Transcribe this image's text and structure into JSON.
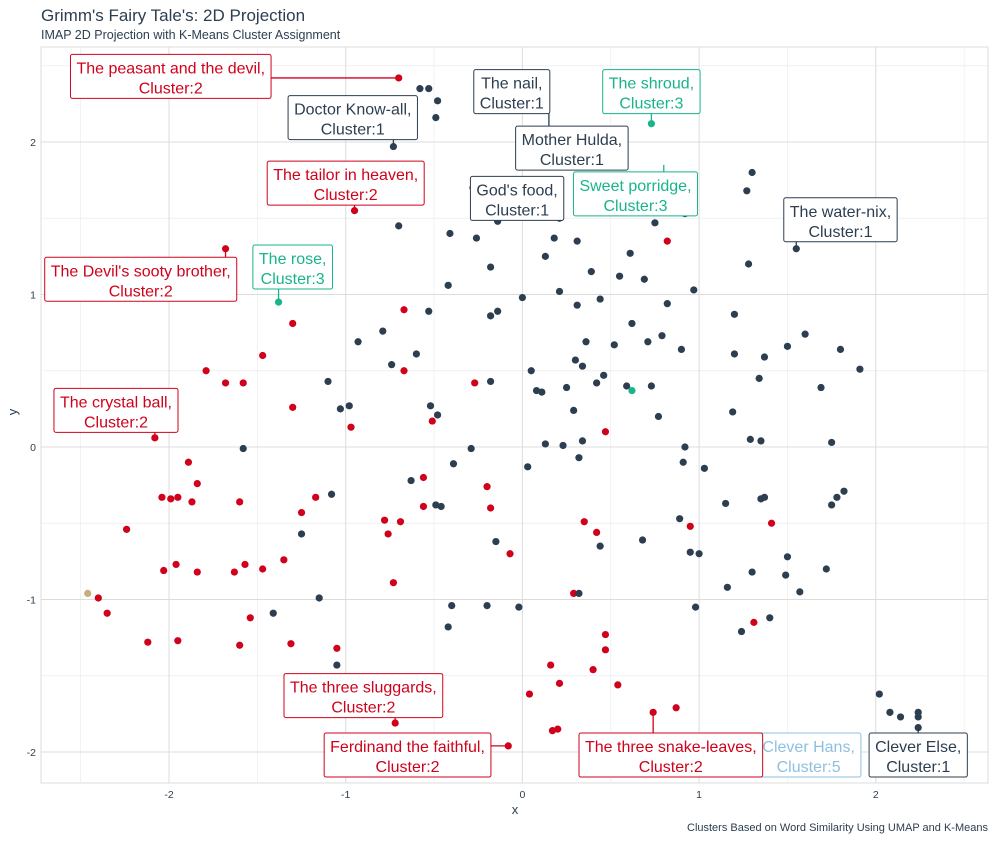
{
  "colors": {
    "cluster1": "#2c3e50",
    "cluster2": "#d0021b",
    "cluster3": "#18b48c",
    "cluster4": "#c8ad7f",
    "cluster5": "#8ec0e0",
    "grid": "#dcdcdc",
    "text": "#2c3e50"
  },
  "chart_data": {
    "type": "scatter",
    "title": "Grimm's Fairy Tale's: 2D Projection",
    "subtitle": "IMAP 2D Projection with K-Means Cluster Assignment",
    "caption": "Clusters Based on Word Similarity Using UMAP and K-Means",
    "xlabel": "x",
    "ylabel": "y",
    "xlim": [
      -2.6,
      2.65
    ],
    "ylim": [
      -2.2,
      2.6
    ],
    "xticks": [
      -2,
      -1,
      0,
      1,
      2
    ],
    "yticks": [
      -2,
      -1,
      0,
      1,
      2
    ],
    "xtick_labels": [
      "-2",
      "-1",
      "0",
      "1",
      "2"
    ],
    "ytick_labels": [
      "-2",
      "-1",
      "0",
      "1",
      "2"
    ],
    "grid": true,
    "legend": "none",
    "points": [
      {
        "x": -0.7,
        "y": 2.42,
        "cluster": 2
      },
      {
        "x": -0.58,
        "y": 2.35,
        "cluster": 1
      },
      {
        "x": -0.53,
        "y": 2.35,
        "cluster": 1
      },
      {
        "x": -0.48,
        "y": 2.27,
        "cluster": 1
      },
      {
        "x": -0.49,
        "y": 2.16,
        "cluster": 1
      },
      {
        "x": -0.73,
        "y": 1.97,
        "cluster": 1
      },
      {
        "x": 0.73,
        "y": 2.12,
        "cluster": 3
      },
      {
        "x": 1.3,
        "y": 1.8,
        "cluster": 1
      },
      {
        "x": 1.27,
        "y": 1.68,
        "cluster": 1
      },
      {
        "x": -0.28,
        "y": 1.7,
        "cluster": 1
      },
      {
        "x": -0.14,
        "y": 1.48,
        "cluster": 1
      },
      {
        "x": -0.95,
        "y": 1.55,
        "cluster": 2
      },
      {
        "x": -0.7,
        "y": 1.45,
        "cluster": 1
      },
      {
        "x": 0.21,
        "y": 1.5,
        "cluster": 1
      },
      {
        "x": 0.92,
        "y": 1.53,
        "cluster": 1
      },
      {
        "x": 0.75,
        "y": 1.47,
        "cluster": 1
      },
      {
        "x": 0.82,
        "y": 1.35,
        "cluster": 2
      },
      {
        "x": 1.55,
        "y": 1.3,
        "cluster": 1
      },
      {
        "x": -1.68,
        "y": 1.3,
        "cluster": 2
      },
      {
        "x": -0.41,
        "y": 1.4,
        "cluster": 1
      },
      {
        "x": -0.26,
        "y": 1.37,
        "cluster": 1
      },
      {
        "x": 0.18,
        "y": 1.37,
        "cluster": 1
      },
      {
        "x": 0.31,
        "y": 1.35,
        "cluster": 1
      },
      {
        "x": 0.13,
        "y": 1.25,
        "cluster": 1
      },
      {
        "x": 0.61,
        "y": 1.27,
        "cluster": 1
      },
      {
        "x": 1.28,
        "y": 1.2,
        "cluster": 1
      },
      {
        "x": -0.18,
        "y": 1.18,
        "cluster": 1
      },
      {
        "x": 0.39,
        "y": 1.15,
        "cluster": 1
      },
      {
        "x": 0.55,
        "y": 1.12,
        "cluster": 1
      },
      {
        "x": 0.69,
        "y": 1.1,
        "cluster": 1
      },
      {
        "x": -0.42,
        "y": 1.06,
        "cluster": 1
      },
      {
        "x": 0.97,
        "y": 1.03,
        "cluster": 1
      },
      {
        "x": 0.21,
        "y": 1.02,
        "cluster": 1
      },
      {
        "x": 0.0,
        "y": 0.98,
        "cluster": 1
      },
      {
        "x": 0.44,
        "y": 0.97,
        "cluster": 1
      },
      {
        "x": 0.82,
        "y": 0.94,
        "cluster": 1
      },
      {
        "x": -1.38,
        "y": 0.95,
        "cluster": 3
      },
      {
        "x": -0.67,
        "y": 0.9,
        "cluster": 2
      },
      {
        "x": -0.53,
        "y": 0.89,
        "cluster": 1
      },
      {
        "x": -0.14,
        "y": 0.89,
        "cluster": 1
      },
      {
        "x": -0.18,
        "y": 0.86,
        "cluster": 1
      },
      {
        "x": 0.31,
        "y": 0.93,
        "cluster": 1
      },
      {
        "x": 1.2,
        "y": 0.87,
        "cluster": 1
      },
      {
        "x": -1.3,
        "y": 0.81,
        "cluster": 2
      },
      {
        "x": 0.62,
        "y": 0.81,
        "cluster": 1
      },
      {
        "x": -0.79,
        "y": 0.76,
        "cluster": 1
      },
      {
        "x": 1.6,
        "y": 0.74,
        "cluster": 1
      },
      {
        "x": 0.79,
        "y": 0.73,
        "cluster": 1
      },
      {
        "x": -0.93,
        "y": 0.69,
        "cluster": 1
      },
      {
        "x": 0.71,
        "y": 0.69,
        "cluster": 1
      },
      {
        "x": 0.36,
        "y": 0.69,
        "cluster": 1
      },
      {
        "x": 0.52,
        "y": 0.67,
        "cluster": 1
      },
      {
        "x": 1.5,
        "y": 0.66,
        "cluster": 1
      },
      {
        "x": 0.9,
        "y": 0.64,
        "cluster": 1
      },
      {
        "x": 1.8,
        "y": 0.64,
        "cluster": 1
      },
      {
        "x": -1.47,
        "y": 0.6,
        "cluster": 2
      },
      {
        "x": -0.6,
        "y": 0.61,
        "cluster": 1
      },
      {
        "x": 1.2,
        "y": 0.61,
        "cluster": 1
      },
      {
        "x": 1.37,
        "y": 0.59,
        "cluster": 1
      },
      {
        "x": 0.3,
        "y": 0.57,
        "cluster": 1
      },
      {
        "x": -0.74,
        "y": 0.54,
        "cluster": 1
      },
      {
        "x": 0.34,
        "y": 0.53,
        "cluster": 1
      },
      {
        "x": 1.91,
        "y": 0.51,
        "cluster": 1
      },
      {
        "x": -1.79,
        "y": 0.5,
        "cluster": 2
      },
      {
        "x": -0.67,
        "y": 0.5,
        "cluster": 2
      },
      {
        "x": 0.05,
        "y": 0.5,
        "cluster": 1
      },
      {
        "x": 0.46,
        "y": 0.47,
        "cluster": 1
      },
      {
        "x": 1.34,
        "y": 0.45,
        "cluster": 1
      },
      {
        "x": -1.68,
        "y": 0.42,
        "cluster": 2
      },
      {
        "x": -1.58,
        "y": 0.42,
        "cluster": 2
      },
      {
        "x": -1.1,
        "y": 0.43,
        "cluster": 1
      },
      {
        "x": -0.27,
        "y": 0.42,
        "cluster": 2
      },
      {
        "x": -0.18,
        "y": 0.43,
        "cluster": 1
      },
      {
        "x": 0.59,
        "y": 0.4,
        "cluster": 1
      },
      {
        "x": 0.25,
        "y": 0.39,
        "cluster": 1
      },
      {
        "x": 0.42,
        "y": 0.42,
        "cluster": 1
      },
      {
        "x": 0.73,
        "y": 0.4,
        "cluster": 1
      },
      {
        "x": 1.69,
        "y": 0.39,
        "cluster": 1
      },
      {
        "x": 0.62,
        "y": 0.37,
        "cluster": 3
      },
      {
        "x": 0.08,
        "y": 0.37,
        "cluster": 1
      },
      {
        "x": 0.11,
        "y": 0.36,
        "cluster": 1
      },
      {
        "x": -0.52,
        "y": 0.27,
        "cluster": 1
      },
      {
        "x": -1.3,
        "y": 0.26,
        "cluster": 2
      },
      {
        "x": -0.98,
        "y": 0.27,
        "cluster": 1
      },
      {
        "x": -1.03,
        "y": 0.25,
        "cluster": 1
      },
      {
        "x": 0.77,
        "y": 0.2,
        "cluster": 1
      },
      {
        "x": 1.19,
        "y": 0.23,
        "cluster": 1
      },
      {
        "x": 0.29,
        "y": 0.24,
        "cluster": 1
      },
      {
        "x": -0.48,
        "y": 0.21,
        "cluster": 1
      },
      {
        "x": -0.51,
        "y": 0.17,
        "cluster": 2
      },
      {
        "x": -0.97,
        "y": 0.13,
        "cluster": 2
      },
      {
        "x": 0.47,
        "y": 0.1,
        "cluster": 2
      },
      {
        "x": -2.08,
        "y": 0.06,
        "cluster": 2
      },
      {
        "x": 1.29,
        "y": 0.05,
        "cluster": 1
      },
      {
        "x": 1.35,
        "y": 0.04,
        "cluster": 1
      },
      {
        "x": 0.34,
        "y": 0.04,
        "cluster": 1
      },
      {
        "x": 1.75,
        "y": 0.03,
        "cluster": 1
      },
      {
        "x": -1.58,
        "y": -0.01,
        "cluster": 1
      },
      {
        "x": 0.13,
        "y": 0.02,
        "cluster": 1
      },
      {
        "x": 0.23,
        "y": 0.01,
        "cluster": 1
      },
      {
        "x": 0.92,
        "y": 0.0,
        "cluster": 1
      },
      {
        "x": -0.29,
        "y": -0.01,
        "cluster": 1
      },
      {
        "x": 0.32,
        "y": -0.07,
        "cluster": 1
      },
      {
        "x": 0.91,
        "y": -0.1,
        "cluster": 1
      },
      {
        "x": 0.03,
        "y": -0.13,
        "cluster": 1
      },
      {
        "x": 1.03,
        "y": -0.14,
        "cluster": 1
      },
      {
        "x": -1.89,
        "y": -0.1,
        "cluster": 2
      },
      {
        "x": -0.39,
        "y": -0.11,
        "cluster": 1
      },
      {
        "x": -0.56,
        "y": -0.2,
        "cluster": 2
      },
      {
        "x": -0.63,
        "y": -0.22,
        "cluster": 1
      },
      {
        "x": -1.84,
        "y": -0.24,
        "cluster": 2
      },
      {
        "x": -0.2,
        "y": -0.26,
        "cluster": 2
      },
      {
        "x": 1.82,
        "y": -0.29,
        "cluster": 1
      },
      {
        "x": -2.04,
        "y": -0.33,
        "cluster": 2
      },
      {
        "x": -1.99,
        "y": -0.34,
        "cluster": 2
      },
      {
        "x": -1.95,
        "y": -0.33,
        "cluster": 2
      },
      {
        "x": -1.08,
        "y": -0.31,
        "cluster": 1
      },
      {
        "x": 1.78,
        "y": -0.33,
        "cluster": 1
      },
      {
        "x": 1.37,
        "y": -0.33,
        "cluster": 1
      },
      {
        "x": 1.35,
        "y": -0.34,
        "cluster": 1
      },
      {
        "x": -1.17,
        "y": -0.33,
        "cluster": 2
      },
      {
        "x": -1.87,
        "y": -0.36,
        "cluster": 2
      },
      {
        "x": -1.6,
        "y": -0.36,
        "cluster": 2
      },
      {
        "x": 1.15,
        "y": -0.37,
        "cluster": 1
      },
      {
        "x": 1.75,
        "y": -0.38,
        "cluster": 1
      },
      {
        "x": -0.49,
        "y": -0.38,
        "cluster": 1
      },
      {
        "x": -0.46,
        "y": -0.39,
        "cluster": 1
      },
      {
        "x": -0.56,
        "y": -0.39,
        "cluster": 2
      },
      {
        "x": -0.18,
        "y": -0.4,
        "cluster": 2
      },
      {
        "x": -1.25,
        "y": -0.43,
        "cluster": 2
      },
      {
        "x": 0.89,
        "y": -0.47,
        "cluster": 1
      },
      {
        "x": -0.78,
        "y": -0.48,
        "cluster": 2
      },
      {
        "x": -0.69,
        "y": -0.49,
        "cluster": 2
      },
      {
        "x": 0.35,
        "y": -0.49,
        "cluster": 2
      },
      {
        "x": 1.41,
        "y": -0.5,
        "cluster": 2
      },
      {
        "x": 0.95,
        "y": -0.52,
        "cluster": 2
      },
      {
        "x": -2.24,
        "y": -0.54,
        "cluster": 2
      },
      {
        "x": -1.25,
        "y": -0.57,
        "cluster": 1
      },
      {
        "x": -0.76,
        "y": -0.57,
        "cluster": 2
      },
      {
        "x": 0.42,
        "y": -0.56,
        "cluster": 2
      },
      {
        "x": 0.68,
        "y": -0.61,
        "cluster": 1
      },
      {
        "x": -0.15,
        "y": -0.62,
        "cluster": 1
      },
      {
        "x": 0.44,
        "y": -0.65,
        "cluster": 1
      },
      {
        "x": 0.95,
        "y": -0.69,
        "cluster": 1
      },
      {
        "x": 1.0,
        "y": -0.7,
        "cluster": 1
      },
      {
        "x": -0.07,
        "y": -0.7,
        "cluster": 2
      },
      {
        "x": 1.5,
        "y": -0.72,
        "cluster": 1
      },
      {
        "x": -1.35,
        "y": -0.74,
        "cluster": 2
      },
      {
        "x": -1.96,
        "y": -0.77,
        "cluster": 2
      },
      {
        "x": -1.57,
        "y": -0.77,
        "cluster": 2
      },
      {
        "x": -1.47,
        "y": -0.8,
        "cluster": 2
      },
      {
        "x": -2.03,
        "y": -0.81,
        "cluster": 2
      },
      {
        "x": -1.84,
        "y": -0.82,
        "cluster": 2
      },
      {
        "x": -1.63,
        "y": -0.82,
        "cluster": 2
      },
      {
        "x": 1.3,
        "y": -0.82,
        "cluster": 1
      },
      {
        "x": 1.72,
        "y": -0.8,
        "cluster": 1
      },
      {
        "x": 1.49,
        "y": -0.84,
        "cluster": 1
      },
      {
        "x": -0.73,
        "y": -0.89,
        "cluster": 2
      },
      {
        "x": 1.16,
        "y": -0.92,
        "cluster": 1
      },
      {
        "x": 1.57,
        "y": -0.95,
        "cluster": 1
      },
      {
        "x": -2.46,
        "y": -0.96,
        "cluster": 4
      },
      {
        "x": 0.29,
        "y": -0.96,
        "cluster": 2
      },
      {
        "x": 0.32,
        "y": -0.96,
        "cluster": 1
      },
      {
        "x": -2.4,
        "y": -0.99,
        "cluster": 2
      },
      {
        "x": -1.15,
        "y": -0.99,
        "cluster": 1
      },
      {
        "x": -0.4,
        "y": -1.04,
        "cluster": 1
      },
      {
        "x": -0.2,
        "y": -1.04,
        "cluster": 1
      },
      {
        "x": -0.02,
        "y": -1.05,
        "cluster": 1
      },
      {
        "x": 0.98,
        "y": -1.05,
        "cluster": 1
      },
      {
        "x": -2.35,
        "y": -1.09,
        "cluster": 2
      },
      {
        "x": -1.41,
        "y": -1.09,
        "cluster": 1
      },
      {
        "x": -1.54,
        "y": -1.12,
        "cluster": 2
      },
      {
        "x": 1.4,
        "y": -1.12,
        "cluster": 1
      },
      {
        "x": -0.42,
        "y": -1.18,
        "cluster": 1
      },
      {
        "x": 1.31,
        "y": -1.15,
        "cluster": 2
      },
      {
        "x": 1.24,
        "y": -1.21,
        "cluster": 1
      },
      {
        "x": 0.47,
        "y": -1.23,
        "cluster": 2
      },
      {
        "x": -2.12,
        "y": -1.28,
        "cluster": 2
      },
      {
        "x": -1.95,
        "y": -1.27,
        "cluster": 2
      },
      {
        "x": -1.6,
        "y": -1.3,
        "cluster": 2
      },
      {
        "x": -1.31,
        "y": -1.29,
        "cluster": 2
      },
      {
        "x": -1.05,
        "y": -1.32,
        "cluster": 2
      },
      {
        "x": 0.47,
        "y": -1.33,
        "cluster": 2
      },
      {
        "x": 0.16,
        "y": -1.43,
        "cluster": 2
      },
      {
        "x": -1.05,
        "y": -1.43,
        "cluster": 1
      },
      {
        "x": 0.4,
        "y": -1.46,
        "cluster": 2
      },
      {
        "x": 0.54,
        "y": -1.56,
        "cluster": 2
      },
      {
        "x": 0.21,
        "y": -1.55,
        "cluster": 2
      },
      {
        "x": 0.04,
        "y": -1.62,
        "cluster": 2
      },
      {
        "x": 2.02,
        "y": -1.62,
        "cluster": 1
      },
      {
        "x": 0.87,
        "y": -1.71,
        "cluster": 2
      },
      {
        "x": 0.74,
        "y": -1.74,
        "cluster": 2
      },
      {
        "x": 2.08,
        "y": -1.74,
        "cluster": 1
      },
      {
        "x": 2.14,
        "y": -1.77,
        "cluster": 1
      },
      {
        "x": 2.24,
        "y": -1.74,
        "cluster": 1
      },
      {
        "x": 2.24,
        "y": -1.77,
        "cluster": 1
      },
      {
        "x": -0.72,
        "y": -1.81,
        "cluster": 2
      },
      {
        "x": 0.17,
        "y": -1.86,
        "cluster": 2
      },
      {
        "x": 0.2,
        "y": -1.85,
        "cluster": 2
      },
      {
        "x": 2.24,
        "y": -1.84,
        "cluster": 1
      },
      {
        "x": -0.08,
        "y": -1.96,
        "cluster": 2
      }
    ],
    "annotations": [
      {
        "line1": "The peasant and the devil,",
        "line2": "Cluster:2",
        "cluster": 2,
        "lx": -1.99,
        "ly": 2.43,
        "px": -0.7,
        "py": 2.42
      },
      {
        "line1": "Doctor Know-all,",
        "line2": "Cluster:1",
        "cluster": 1,
        "lx": -0.96,
        "ly": 2.16,
        "px": -0.73,
        "py": 1.97
      },
      {
        "line1": "The nail,",
        "line2": "Cluster:1",
        "cluster": 1,
        "lx": -0.06,
        "ly": 2.33,
        "px": 0.15,
        "py": 2.08
      },
      {
        "line1": "The shroud,",
        "line2": "Cluster:3",
        "cluster": 3,
        "lx": 0.73,
        "ly": 2.33,
        "px": 0.73,
        "py": 2.12
      },
      {
        "line1": "Mother Hulda,",
        "line2": "Cluster:1",
        "cluster": 1,
        "lx": 0.28,
        "ly": 1.96,
        "px": 0.38,
        "py": 1.85
      },
      {
        "line1": "The tailor in heaven,",
        "line2": "Cluster:2",
        "cluster": 2,
        "lx": -1.0,
        "ly": 1.73,
        "px": -0.95,
        "py": 1.55
      },
      {
        "line1": "God's food,",
        "line2": "Cluster:1",
        "cluster": 1,
        "lx": -0.03,
        "ly": 1.63,
        "px": -0.14,
        "py": 1.48
      },
      {
        "line1": "Sweet porridge,",
        "line2": "Cluster:3",
        "cluster": 3,
        "lx": 0.64,
        "ly": 1.66,
        "px": 0.8,
        "py": 1.85
      },
      {
        "line1": "The water-nix,",
        "line2": "Cluster:1",
        "cluster": 1,
        "lx": 1.8,
        "ly": 1.49,
        "px": 1.55,
        "py": 1.3
      },
      {
        "line1": "The rose,",
        "line2": "Cluster:3",
        "cluster": 3,
        "lx": -1.3,
        "ly": 1.18,
        "px": -1.38,
        "py": 0.95
      },
      {
        "line1": "The Devil's sooty brother,",
        "line2": "Cluster:2",
        "cluster": 2,
        "lx": -2.16,
        "ly": 1.1,
        "px": -1.68,
        "py": 1.3
      },
      {
        "line1": "The crystal ball,",
        "line2": "Cluster:2",
        "cluster": 2,
        "lx": -2.3,
        "ly": 0.24,
        "px": -2.08,
        "py": 0.06
      },
      {
        "line1": "The three sluggards,",
        "line2": "Cluster:2",
        "cluster": 2,
        "lx": -0.9,
        "ly": -1.63,
        "px": -0.72,
        "py": -1.81
      },
      {
        "line1": "Ferdinand the faithful,",
        "line2": "Cluster:2",
        "cluster": 2,
        "lx": -0.65,
        "ly": -2.02,
        "px": -0.08,
        "py": -1.96
      },
      {
        "line1": "Clever Hans,",
        "line2": "Cluster:5",
        "cluster": 5,
        "lx": 1.62,
        "ly": -2.02,
        "px": 1.62,
        "py": -2.02
      },
      {
        "line1": "The three snake-leaves,",
        "line2": "Cluster:2",
        "cluster": 2,
        "lx": 0.84,
        "ly": -2.02,
        "px": 0.74,
        "py": -1.74
      },
      {
        "line1": "Clever Else,",
        "line2": "Cluster:1",
        "cluster": 1,
        "lx": 2.24,
        "ly": -2.02,
        "px": 2.24,
        "py": -1.84
      }
    ]
  }
}
